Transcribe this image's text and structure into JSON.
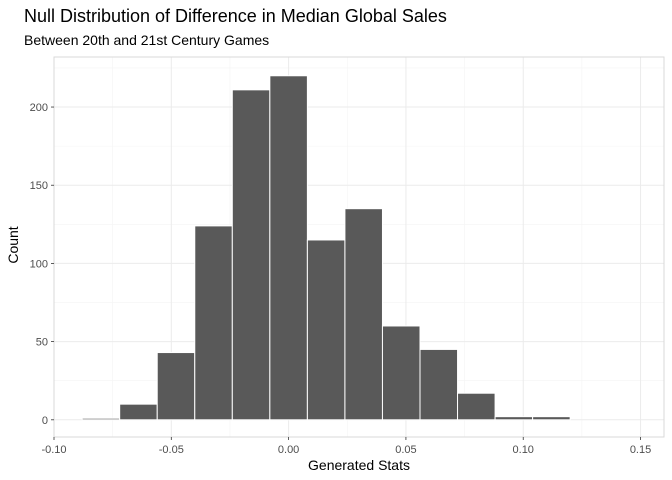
{
  "chart_data": {
    "type": "bar",
    "title": "Null Distribution of Difference in Median Global Sales",
    "subtitle": "Between 20th and 21st Century Games",
    "xlabel": "Generated Stats",
    "ylabel": "Count",
    "xlim": [
      -0.1,
      0.16
    ],
    "ylim": [
      -11,
      232
    ],
    "x_ticks": [
      -0.1,
      -0.05,
      0.0,
      0.05,
      0.1,
      0.15
    ],
    "x_tick_labels": [
      "-0.10",
      "-0.05",
      "0.00",
      "0.05",
      "0.10",
      "0.15"
    ],
    "y_ticks": [
      0,
      50,
      100,
      150,
      200
    ],
    "y_tick_labels": [
      "0",
      "50",
      "100",
      "150",
      "200"
    ],
    "grid": true,
    "bar_fill": "#595959",
    "bar_outline": "#ffffff",
    "bins": [
      {
        "x_start": -0.088,
        "x_end": -0.072,
        "value": 1
      },
      {
        "x_start": -0.072,
        "x_end": -0.056,
        "value": 10
      },
      {
        "x_start": -0.056,
        "x_end": -0.04,
        "value": 43
      },
      {
        "x_start": -0.04,
        "x_end": -0.024,
        "value": 124
      },
      {
        "x_start": -0.024,
        "x_end": -0.008,
        "value": 211
      },
      {
        "x_start": -0.008,
        "x_end": 0.008,
        "value": 220
      },
      {
        "x_start": 0.008,
        "x_end": 0.024,
        "value": 115
      },
      {
        "x_start": 0.024,
        "x_end": 0.04,
        "value": 135
      },
      {
        "x_start": 0.04,
        "x_end": 0.056,
        "value": 60
      },
      {
        "x_start": 0.056,
        "x_end": 0.072,
        "value": 45
      },
      {
        "x_start": 0.072,
        "x_end": 0.088,
        "value": 17
      },
      {
        "x_start": 0.088,
        "x_end": 0.104,
        "value": 2
      },
      {
        "x_start": 0.104,
        "x_end": 0.12,
        "value": 2
      },
      {
        "x_start": 0.12,
        "x_end": 0.136,
        "value": 0
      },
      {
        "x_start": 0.136,
        "x_end": 0.152,
        "value": 0
      }
    ]
  }
}
